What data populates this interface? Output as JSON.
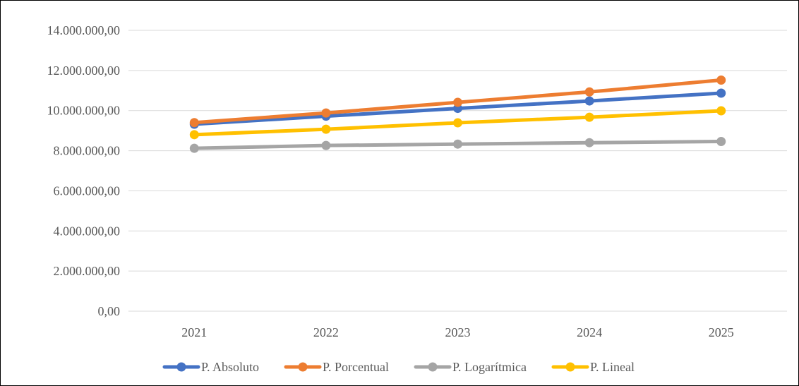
{
  "chart_data": {
    "type": "line",
    "title": "",
    "xlabel": "",
    "ylabel": "",
    "categories": [
      "2021",
      "2022",
      "2023",
      "2024",
      "2025"
    ],
    "ylim": [
      0,
      14000000
    ],
    "yticks": [
      0,
      2000000,
      4000000,
      6000000,
      8000000,
      10000000,
      12000000,
      14000000
    ],
    "ytick_labels": [
      "0,00",
      "2.000.000,00",
      "4.000.000,00",
      "6.000.000,00",
      "8.000.000,00",
      "10.000.000,00",
      "12.000.000,00",
      "14.000.000,00"
    ],
    "grid": true,
    "legend_position": "bottom",
    "series": [
      {
        "name": "P. Absoluto",
        "color": "#4472C4",
        "values": [
          9320000,
          9720000,
          10110000,
          10480000,
          10870000
        ]
      },
      {
        "name": "P. Porcentual",
        "color": "#ED7D31",
        "values": [
          9400000,
          9880000,
          10410000,
          10930000,
          11520000
        ]
      },
      {
        "name": "P. Logarítmica",
        "color": "#A5A5A5",
        "values": [
          8120000,
          8260000,
          8330000,
          8400000,
          8460000
        ]
      },
      {
        "name": "P. Lineal",
        "color": "#FFC000",
        "values": [
          8800000,
          9070000,
          9390000,
          9670000,
          9990000
        ]
      }
    ]
  }
}
